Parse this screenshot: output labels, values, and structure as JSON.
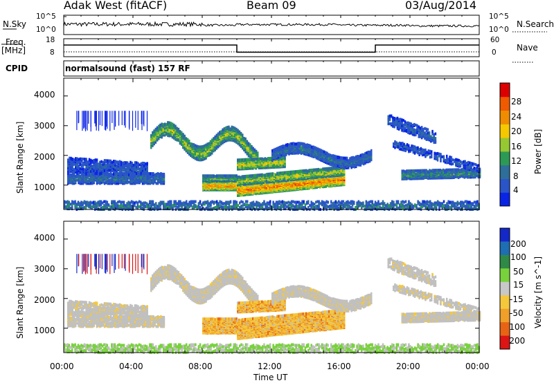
{
  "header": {
    "station": "Adak West (fitACF)",
    "beam": "Beam 09",
    "date": "03/Aug/2014"
  },
  "top_panels": {
    "nsky_label": "N.Sky",
    "nsky_ticks": [
      "10^5",
      "10^0"
    ],
    "nsearch_label": "N.Search",
    "freq_label": "Freq.",
    "freq_unit": "[MHz]",
    "freq_ticks": [
      "18",
      "8"
    ],
    "nave_label": "Nave",
    "nave_ticks": [
      "60",
      "0"
    ],
    "cpid_label": "CPID",
    "cpid_value": "normalsound (fast) 157 RF"
  },
  "colors": {
    "power_scale": [
      "#0a24e6",
      "#2a55c8",
      "#2e6e9a",
      "#2c9a55",
      "#96c832",
      "#f5c800",
      "#f08c00",
      "#f05a00",
      "#dc0000"
    ],
    "velocity_scale": [
      "#1428c8",
      "#1e6eb4",
      "#2e8a46",
      "#78d23c",
      "#c8c8c8",
      "#f5c83c",
      "#f0a028",
      "#e86414",
      "#dc1414"
    ],
    "ground_scatter_gray": "#c0c0c0"
  },
  "chart_data": [
    {
      "type": "heatmap",
      "panel": "power",
      "ylabel": "Slant Range [km]",
      "xlabel": "",
      "yticks": [
        "1000",
        "2000",
        "3000",
        "4000"
      ],
      "ylim": [
        180,
        4600
      ],
      "colorbar": {
        "label": "Power [dB]",
        "ticks": [
          "4",
          "8",
          "12",
          "16",
          "20",
          "24",
          "28"
        ],
        "range": [
          0,
          30
        ]
      }
    },
    {
      "type": "heatmap",
      "panel": "velocity",
      "ylabel": "Slant Range [km]",
      "xlabel": "Time UT",
      "yticks": [
        "1000",
        "2000",
        "3000",
        "4000"
      ],
      "ylim": [
        180,
        4600
      ],
      "xticks": [
        "00:00",
        "04:00",
        "08:00",
        "12:00",
        "16:00",
        "20:00",
        "00:00"
      ],
      "colorbar": {
        "label": "Velocity [m s^-1]",
        "ticks": [
          "200",
          "100",
          "50",
          "15",
          "-15",
          "-50",
          "-100",
          "-200"
        ]
      }
    },
    {
      "type": "line",
      "panel": "freq_nave",
      "series": [
        {
          "x_hours": [
            0,
            10,
            10,
            18,
            18,
            24
          ],
          "values": [
            14.5,
            14.5,
            10.5,
            10.5,
            14.5,
            14.5
          ]
        }
      ],
      "ylim": [
        8,
        18
      ]
    }
  ]
}
